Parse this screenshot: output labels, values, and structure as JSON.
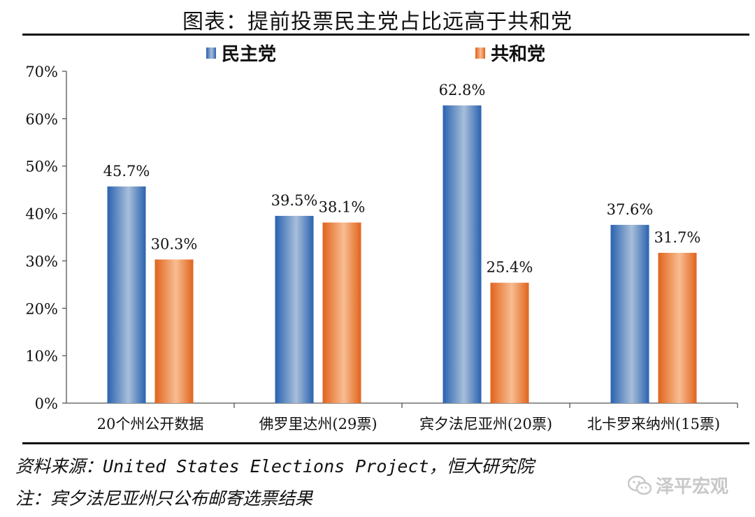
{
  "title": "图表：提前投票民主党占比远高于共和党",
  "chart_data": {
    "type": "bar",
    "categories": [
      "20个州公开数据",
      "佛罗里达州(29票)",
      "宾夕法尼亚州(20票)",
      "北卡罗来纳州(15票)"
    ],
    "series": [
      {
        "name": "民主党",
        "values": [
          45.7,
          39.5,
          62.8,
          37.6
        ],
        "labels": [
          "45.7%",
          "39.5%",
          "62.8%",
          "37.6%"
        ],
        "color": "#4a82c0"
      },
      {
        "name": "共和党",
        "values": [
          30.3,
          38.1,
          25.4,
          31.7
        ],
        "labels": [
          "30.3%",
          "38.1%",
          "25.4%",
          "31.7%"
        ],
        "color": "#ec7c30"
      }
    ],
    "ylim": [
      0,
      70
    ],
    "yticks": [
      0,
      10,
      20,
      30,
      40,
      50,
      60,
      70
    ],
    "ytick_labels": [
      "0%",
      "10%",
      "20%",
      "30%",
      "40%",
      "50%",
      "60%",
      "70%"
    ],
    "legend_position": "top"
  },
  "footer": {
    "source": "资料来源：United States Elections Project，恒大研究院",
    "note": "注：宾夕法尼亚州只公布邮寄选票结果"
  },
  "watermark": {
    "icon": "wechat-icon",
    "text": "泽平宏观"
  }
}
